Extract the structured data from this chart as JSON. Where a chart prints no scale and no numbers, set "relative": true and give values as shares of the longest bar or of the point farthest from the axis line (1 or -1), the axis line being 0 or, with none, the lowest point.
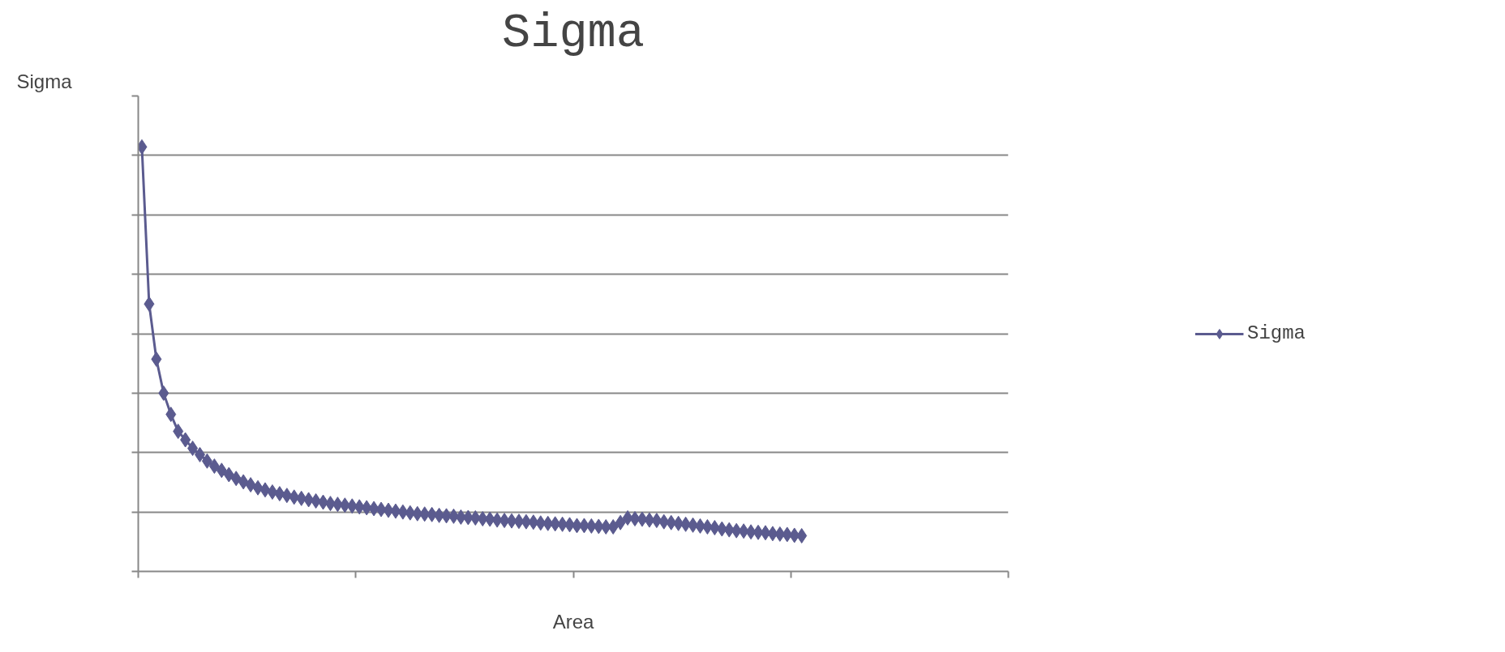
{
  "chart_data": {
    "type": "line",
    "title": "Sigma",
    "xlabel": "Area",
    "ylabel": "Sigma",
    "relative": true,
    "tick_labels": false,
    "grid": "y",
    "legend": "right",
    "marker": "diamond",
    "line_style": "solid",
    "categories": [
      null,
      null,
      null,
      null,
      null,
      null,
      null,
      null,
      null,
      null,
      null,
      null,
      null,
      null,
      null,
      null,
      null,
      null,
      null,
      null,
      null,
      null,
      null,
      null,
      null,
      null,
      null,
      null,
      null,
      null,
      null,
      null,
      null,
      null,
      null,
      null,
      null,
      null,
      null,
      null,
      null,
      null,
      null,
      null,
      null,
      null,
      null,
      null,
      null,
      null,
      null,
      null,
      null,
      null,
      null,
      null,
      null,
      null,
      null,
      null,
      null,
      null,
      null,
      null,
      null,
      null,
      null,
      null,
      null,
      null,
      null,
      null,
      null,
      null,
      null,
      null,
      null,
      null,
      null,
      null,
      null,
      null,
      null,
      null,
      null,
      null,
      null,
      null,
      null,
      null,
      null,
      null,
      null,
      null,
      null,
      null,
      null,
      null,
      null,
      null,
      null,
      null,
      null,
      null,
      null,
      null,
      null,
      null,
      null,
      null,
      null,
      null,
      null,
      null,
      null,
      null,
      null,
      null,
      null,
      null
    ],
    "series": [
      {
        "name": "Sigma",
        "color": "#5b5b8f",
        "values": [
          1.0,
          0.63,
          0.5,
          0.42,
          0.37,
          0.33,
          0.31,
          0.29,
          0.275,
          0.26,
          0.248,
          0.238,
          0.228,
          0.219,
          0.211,
          0.204,
          0.197,
          0.192,
          0.187,
          0.183,
          0.179,
          0.175,
          0.172,
          0.169,
          0.166,
          0.163,
          0.16,
          0.158,
          0.156,
          0.154,
          0.152,
          0.15,
          0.148,
          0.146,
          0.144,
          0.142,
          0.14,
          0.138,
          0.136,
          0.135,
          0.134,
          0.132,
          0.131,
          0.13,
          0.128,
          0.127,
          0.126,
          0.124,
          0.123,
          0.121,
          0.12,
          0.119,
          0.118,
          0.117,
          0.116,
          0.114,
          0.113,
          0.112,
          0.111,
          0.11,
          0.108,
          0.108,
          0.107,
          0.106,
          0.105,
          0.105,
          0.115,
          0.126,
          0.124,
          0.123,
          0.121,
          0.12,
          0.117,
          0.115,
          0.113,
          0.111,
          0.109,
          0.107,
          0.105,
          0.103,
          0.1,
          0.098,
          0.096,
          0.095,
          0.093,
          0.092,
          0.091,
          0.089,
          0.088,
          0.087,
          0.085,
          0.084,
          null,
          null,
          null,
          null,
          null,
          null,
          null,
          null,
          null,
          null,
          null,
          null,
          null,
          null,
          null,
          null,
          null,
          null,
          null,
          null,
          null,
          null,
          null,
          null,
          null,
          null,
          null,
          null
        ]
      }
    ]
  }
}
